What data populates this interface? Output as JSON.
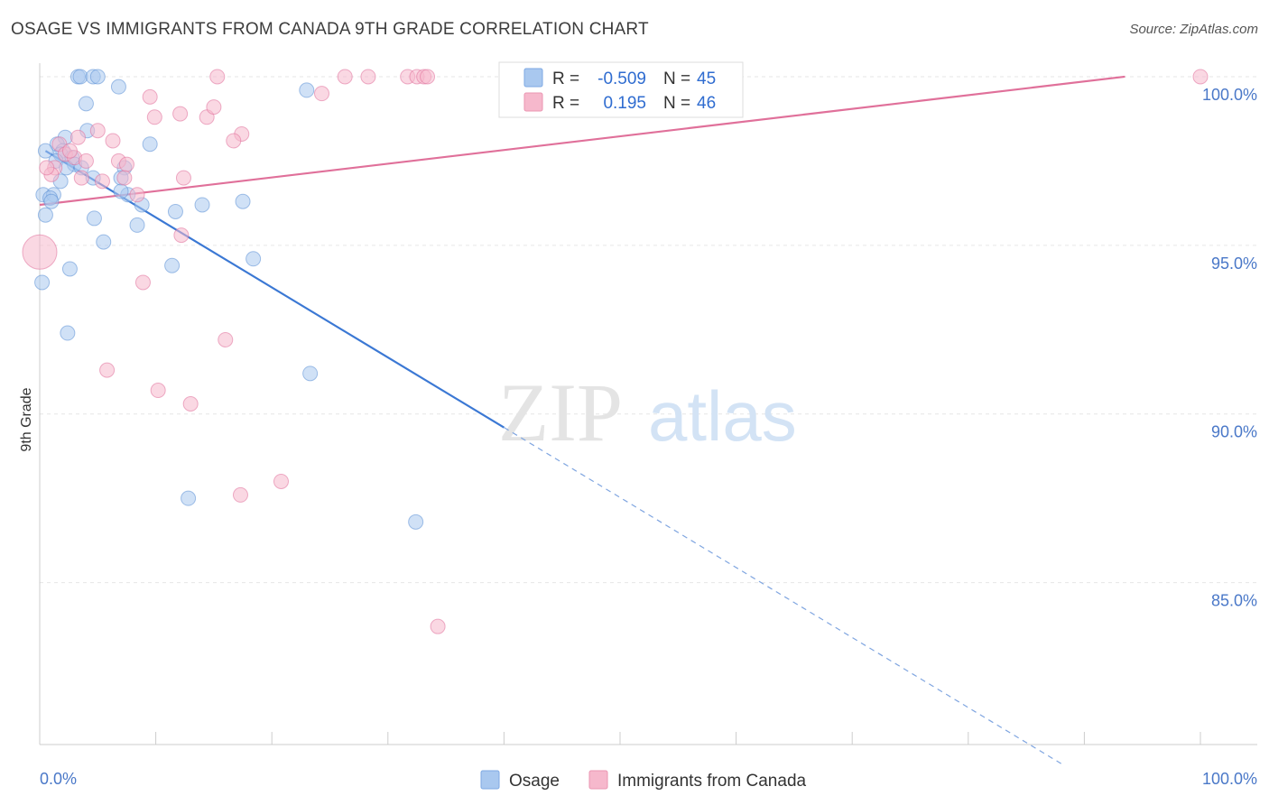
{
  "title": "OSAGE VS IMMIGRANTS FROM CANADA 9TH GRADE CORRELATION CHART",
  "source": "Source: ZipAtlas.com",
  "watermark": {
    "zip": "ZIP",
    "atlas": "atlas"
  },
  "stats": {
    "rows": [
      {
        "r_label": "R =",
        "r_value": "-0.509",
        "n_label": "N =",
        "n_value": "45",
        "color": "#a9c8ef"
      },
      {
        "r_label": "R =",
        "r_value": "0.195",
        "n_label": "N =",
        "n_value": "46",
        "color": "#f6b8cc"
      }
    ]
  },
  "chart_data": {
    "type": "scatter",
    "xlabel": "",
    "ylabel": "9th Grade",
    "xlim": [
      0,
      100
    ],
    "ylim": [
      80.2,
      100.4
    ],
    "x_tick_labels": [
      "0.0%",
      "100.0%"
    ],
    "y_ticks": [
      100,
      95,
      90,
      85
    ],
    "y_tick_labels": [
      "100.0%",
      "95.0%",
      "90.0%",
      "85.0%"
    ],
    "grid": true,
    "legend_position": "bottom-center",
    "series": [
      {
        "name": "Osage",
        "color": "#5b8fd6",
        "fill": "#a9c8ef",
        "trend": {
          "x0": 0.5,
          "y0": 97.8,
          "x1": 40.0,
          "y1": 89.6,
          "dash_x1": 88.0
        },
        "points": [
          [
            3.3,
            100.0
          ],
          [
            3.5,
            100.0
          ],
          [
            4.6,
            100.0
          ],
          [
            5.0,
            100.0
          ],
          [
            6.8,
            99.7
          ],
          [
            23.0,
            99.6
          ],
          [
            4.0,
            99.2
          ],
          [
            4.1,
            98.4
          ],
          [
            2.2,
            98.2
          ],
          [
            1.5,
            98.0
          ],
          [
            9.5,
            98.0
          ],
          [
            0.5,
            97.8
          ],
          [
            2.0,
            97.8
          ],
          [
            1.8,
            97.7
          ],
          [
            2.8,
            97.6
          ],
          [
            1.4,
            97.5
          ],
          [
            3.0,
            97.4
          ],
          [
            3.6,
            97.3
          ],
          [
            7.3,
            97.3
          ],
          [
            4.6,
            97.0
          ],
          [
            7.0,
            97.0
          ],
          [
            1.8,
            96.9
          ],
          [
            0.3,
            96.5
          ],
          [
            1.2,
            96.5
          ],
          [
            7.6,
            96.5
          ],
          [
            0.9,
            96.4
          ],
          [
            1.0,
            96.3
          ],
          [
            8.8,
            96.2
          ],
          [
            14.0,
            96.2
          ],
          [
            17.5,
            96.3
          ],
          [
            11.7,
            96.0
          ],
          [
            0.5,
            95.9
          ],
          [
            4.7,
            95.8
          ],
          [
            8.4,
            95.6
          ],
          [
            5.5,
            95.1
          ],
          [
            18.4,
            94.6
          ],
          [
            2.6,
            94.3
          ],
          [
            11.4,
            94.4
          ],
          [
            0.2,
            93.9
          ],
          [
            2.4,
            92.4
          ],
          [
            23.3,
            91.2
          ],
          [
            12.8,
            87.5
          ],
          [
            32.4,
            86.8
          ],
          [
            7.0,
            96.6
          ],
          [
            2.3,
            97.3
          ]
        ]
      },
      {
        "name": "Immigrants from Canada",
        "color": "#e0709a",
        "fill": "#f6b8cc",
        "trend": {
          "x0": 0.0,
          "y0": 96.2,
          "x1": 93.5,
          "y1": 100.0
        },
        "points": [
          [
            15.3,
            100.0
          ],
          [
            26.3,
            100.0
          ],
          [
            28.3,
            100.0
          ],
          [
            31.7,
            100.0
          ],
          [
            32.5,
            100.0
          ],
          [
            33.1,
            100.0
          ],
          [
            33.4,
            100.0
          ],
          [
            40.3,
            100.0
          ],
          [
            47.0,
            100.0
          ],
          [
            100.0,
            100.0
          ],
          [
            24.3,
            99.5
          ],
          [
            9.5,
            99.4
          ],
          [
            12.1,
            98.9
          ],
          [
            14.4,
            98.8
          ],
          [
            15.0,
            99.1
          ],
          [
            9.9,
            98.8
          ],
          [
            17.4,
            98.3
          ],
          [
            16.7,
            98.1
          ],
          [
            3.3,
            98.2
          ],
          [
            6.3,
            98.1
          ],
          [
            1.7,
            98.0
          ],
          [
            2.2,
            97.7
          ],
          [
            3.0,
            97.6
          ],
          [
            4.0,
            97.5
          ],
          [
            6.8,
            97.5
          ],
          [
            7.5,
            97.4
          ],
          [
            1.3,
            97.3
          ],
          [
            1.0,
            97.1
          ],
          [
            3.6,
            97.0
          ],
          [
            7.3,
            97.0
          ],
          [
            12.4,
            97.0
          ],
          [
            5.4,
            96.9
          ],
          [
            8.4,
            96.5
          ],
          [
            0.0,
            94.8
          ],
          [
            12.2,
            95.3
          ],
          [
            8.9,
            93.9
          ],
          [
            16.0,
            92.2
          ],
          [
            5.8,
            91.3
          ],
          [
            10.2,
            90.7
          ],
          [
            13.0,
            90.3
          ],
          [
            20.8,
            88.0
          ],
          [
            17.3,
            87.6
          ],
          [
            34.3,
            83.7
          ],
          [
            0.6,
            97.3
          ],
          [
            5.0,
            98.4
          ],
          [
            2.6,
            97.8
          ]
        ]
      }
    ]
  }
}
